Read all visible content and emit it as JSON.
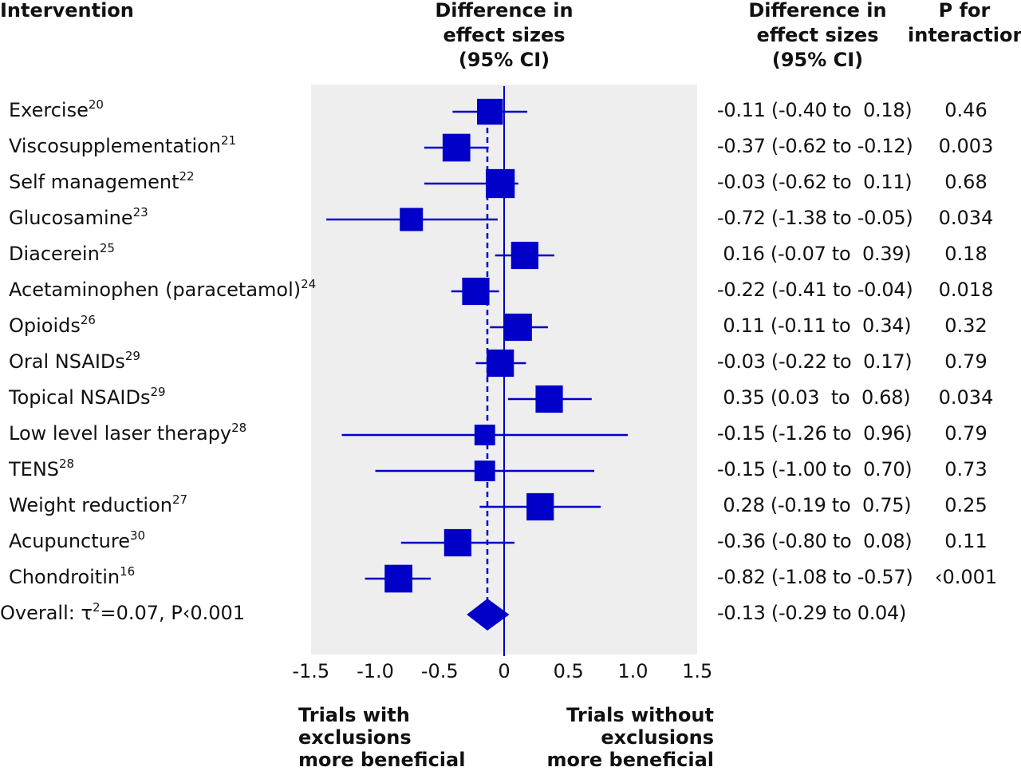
{
  "headers": {
    "intervention": "Intervention",
    "difference_plot": [
      "Difference in",
      "effect sizes",
      "(95% CI)"
    ],
    "difference_col": [
      "Difference in",
      "effect sizes",
      "(95% CI)"
    ],
    "p_interaction": [
      "P for",
      "interaction"
    ]
  },
  "rows": [
    {
      "name": "Exercise",
      "ref": "20",
      "ci_text": "-0.11 (-0.40 to  0.18)",
      "p": "0.46"
    },
    {
      "name": "Viscosupplementation",
      "ref": "21",
      "ci_text": "-0.37 (-0.62 to -0.12)",
      "p": "0.003"
    },
    {
      "name": "Self management",
      "ref": "22",
      "ci_text": "-0.03 (-0.62 to  0.11)",
      "p": "0.68"
    },
    {
      "name": "Glucosamine",
      "ref": "23",
      "ci_text": "-0.72 (-1.38 to -0.05)",
      "p": "0.034"
    },
    {
      "name": "Diacerein",
      "ref": "25",
      "ci_text": " 0.16 (-0.07 to  0.39)",
      "p": "0.18"
    },
    {
      "name": "Acetaminophen (paracetamol)",
      "ref": "24",
      "ci_text": "-0.22 (-0.41 to -0.04)",
      "p": "0.018"
    },
    {
      "name": "Opioids",
      "ref": "26",
      "ci_text": " 0.11 (-0.11 to  0.34)",
      "p": "0.32"
    },
    {
      "name": "Oral NSAIDs",
      "ref": "29",
      "ci_text": "-0.03 (-0.22 to  0.17)",
      "p": "0.79"
    },
    {
      "name": "Topical NSAIDs",
      "ref": "29",
      "ci_text": " 0.35 (0.03  to  0.68)",
      "p": "0.034"
    },
    {
      "name": "Low level laser therapy",
      "ref": "28",
      "ci_text": "-0.15 (-1.26 to  0.96)",
      "p": "0.79"
    },
    {
      "name": "TENS",
      "ref": "28",
      "ci_text": "-0.15 (-1.00 to  0.70)",
      "p": "0.73"
    },
    {
      "name": "Weight reduction",
      "ref": "27",
      "ci_text": " 0.28 (-0.19 to  0.75)",
      "p": "0.25"
    },
    {
      "name": "Acupuncture",
      "ref": "30",
      "ci_text": "-0.36 (-0.80 to  0.08)",
      "p": "0.11"
    },
    {
      "name": "Chondroitin",
      "ref": "16",
      "ci_text": "-0.82 (-1.08 to -0.57)",
      "p": "‹0.001"
    }
  ],
  "overall": {
    "label_prefix": "Overall: τ",
    "label_sup": "2",
    "label_suffix": "=0.07, P‹0.001",
    "ci_text": "-0.13 (-0.29 to 0.04)"
  },
  "axis": {
    "ticks": [
      "-1.5",
      "-1.0",
      "-0.5",
      "0",
      "0.5",
      "1.0",
      "1.5"
    ]
  },
  "footnotes": {
    "left": [
      "Trials with",
      "exclusions",
      "more beneficial"
    ],
    "right": [
      "Trials without",
      "exclusions",
      "more beneficial"
    ]
  },
  "colors": {
    "marker": "#0000c8",
    "panel": "#eeeeee"
  },
  "chart_data": {
    "type": "forest",
    "xlim": [
      -1.5,
      1.5
    ],
    "xticks": [
      -1.5,
      -1.0,
      -0.5,
      0,
      0.5,
      1.0,
      1.5
    ],
    "reference_line": 0,
    "overall_line": -0.13,
    "points": [
      {
        "name": "Exercise",
        "est": -0.11,
        "lo": -0.4,
        "hi": 0.18,
        "weight": 0.63
      },
      {
        "name": "Viscosupplementation",
        "est": -0.37,
        "lo": -0.62,
        "hi": -0.12,
        "weight": 0.72
      },
      {
        "name": "Self management",
        "est": -0.03,
        "lo": -0.62,
        "hi": 0.11,
        "weight": 0.78
      },
      {
        "name": "Glucosamine",
        "est": -0.72,
        "lo": -1.38,
        "hi": -0.05,
        "weight": 0.5
      },
      {
        "name": "Diacerein",
        "est": 0.16,
        "lo": -0.07,
        "hi": 0.39,
        "weight": 0.7
      },
      {
        "name": "Acetaminophen (paracetamol)",
        "est": -0.22,
        "lo": -0.41,
        "hi": -0.04,
        "weight": 0.7
      },
      {
        "name": "Opioids",
        "est": 0.11,
        "lo": -0.11,
        "hi": 0.34,
        "weight": 0.7
      },
      {
        "name": "Oral NSAIDs",
        "est": -0.03,
        "lo": -0.22,
        "hi": 0.17,
        "weight": 0.7
      },
      {
        "name": "Topical NSAIDs",
        "est": 0.35,
        "lo": 0.03,
        "hi": 0.68,
        "weight": 0.7
      },
      {
        "name": "Low level laser therapy",
        "est": -0.15,
        "lo": -1.26,
        "hi": 0.96,
        "weight": 0.38
      },
      {
        "name": "TENS",
        "est": -0.15,
        "lo": -1.0,
        "hi": 0.7,
        "weight": 0.38
      },
      {
        "name": "Weight reduction",
        "est": 0.28,
        "lo": -0.19,
        "hi": 0.75,
        "weight": 0.7
      },
      {
        "name": "Acupuncture",
        "est": -0.36,
        "lo": -0.8,
        "hi": 0.08,
        "weight": 0.7
      },
      {
        "name": "Chondroitin",
        "est": -0.82,
        "lo": -1.08,
        "hi": -0.57,
        "weight": 0.72
      }
    ],
    "overall": {
      "est": -0.13,
      "lo": -0.29,
      "hi": 0.04
    }
  }
}
